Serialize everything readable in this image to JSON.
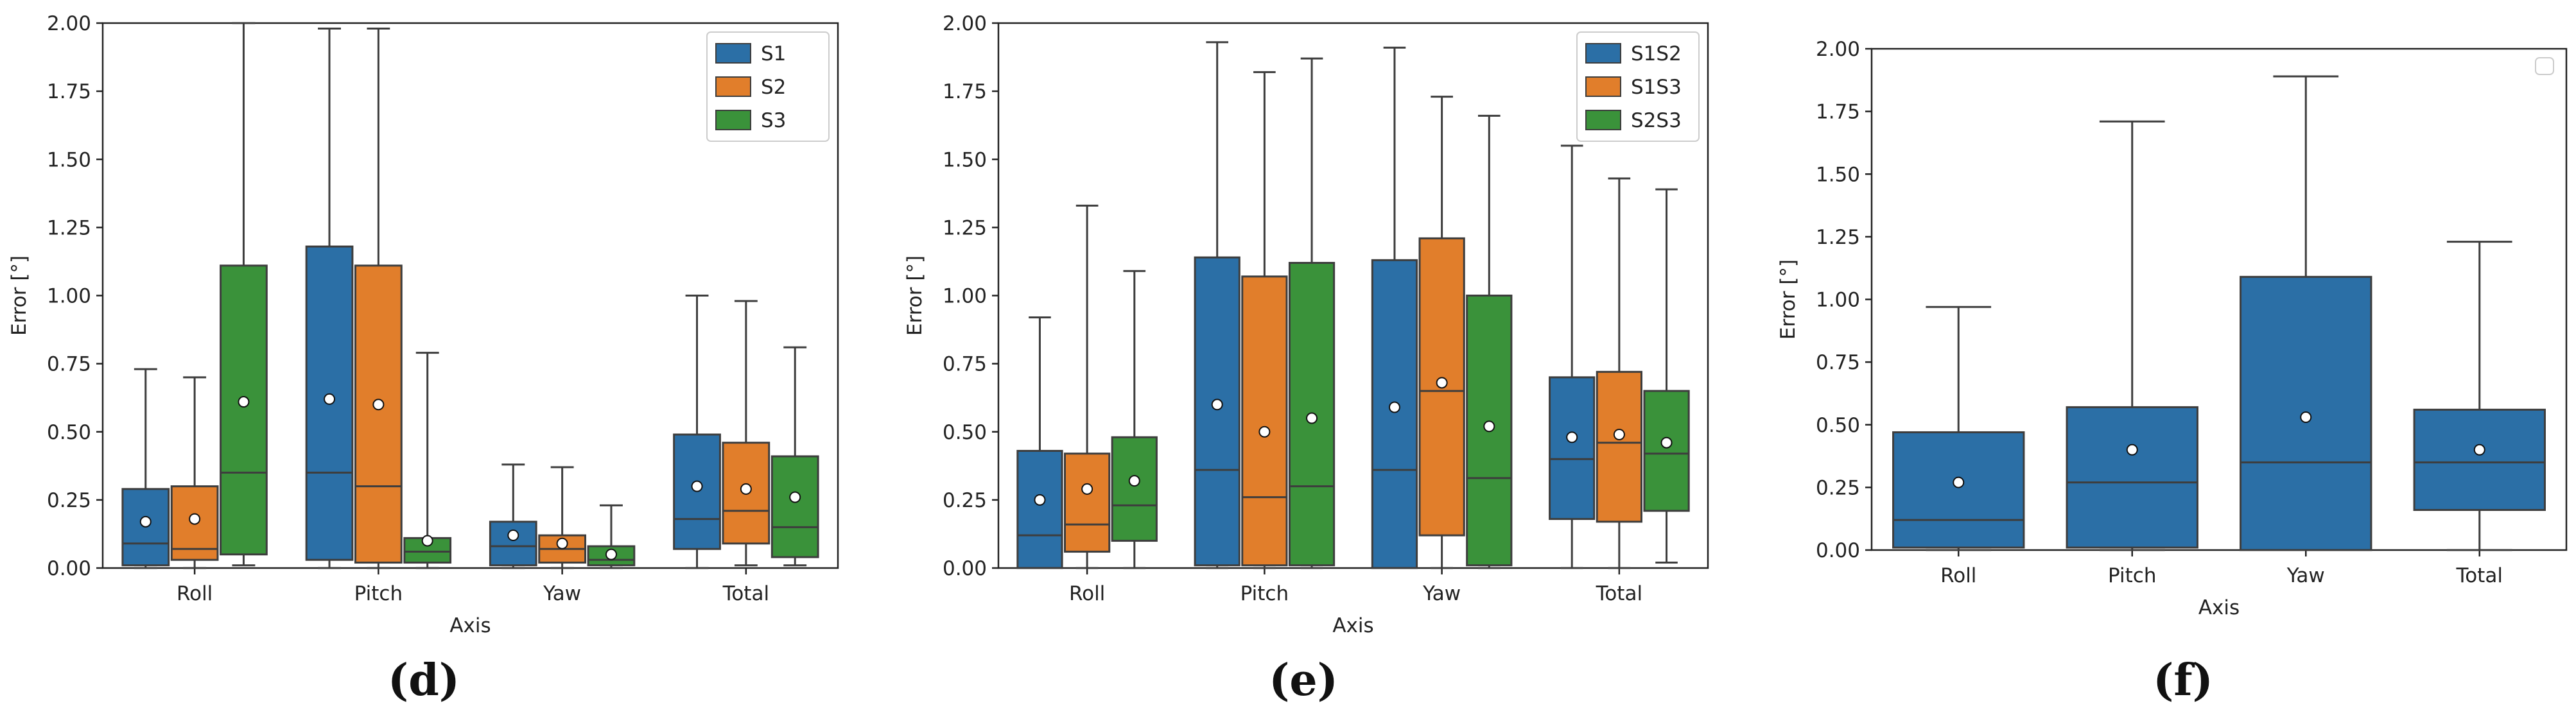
{
  "colors": {
    "box_stroke": "#3d3d3d",
    "mean_fill": "#ffffff",
    "axis": "#222222"
  },
  "chart_data": [
    {
      "type": "box",
      "caption": "(d)",
      "xlabel": "Axis",
      "ylabel": "Error [°]",
      "ylim": [
        0,
        2
      ],
      "yticks": [
        "0.00",
        "0.25",
        "0.50",
        "0.75",
        "1.00",
        "1.25",
        "1.50",
        "1.75",
        "2.00"
      ],
      "categories": [
        "Roll",
        "Pitch",
        "Yaw",
        "Total"
      ],
      "legend": {
        "location": "top-right",
        "entries": [
          "S1",
          "S2",
          "S3"
        ]
      },
      "series": [
        {
          "name": "S1",
          "color": "#2b6fa6",
          "boxes": [
            {
              "category": "Roll",
              "whislo": 0.0,
              "q1": 0.01,
              "med": 0.09,
              "q3": 0.29,
              "whishi": 0.73,
              "mean": 0.17
            },
            {
              "category": "Pitch",
              "whislo": 0.0,
              "q1": 0.03,
              "med": 0.35,
              "q3": 1.18,
              "whishi": 1.98,
              "mean": 0.62
            },
            {
              "category": "Yaw",
              "whislo": 0.0,
              "q1": 0.01,
              "med": 0.08,
              "q3": 0.17,
              "whishi": 0.38,
              "mean": 0.12
            },
            {
              "category": "Total",
              "whislo": 0.0,
              "q1": 0.07,
              "med": 0.18,
              "q3": 0.49,
              "whishi": 1.0,
              "mean": 0.3
            }
          ]
        },
        {
          "name": "S2",
          "color": "#e17e2b",
          "boxes": [
            {
              "category": "Roll",
              "whislo": 0.0,
              "q1": 0.03,
              "med": 0.07,
              "q3": 0.3,
              "whishi": 0.7,
              "mean": 0.18
            },
            {
              "category": "Pitch",
              "whislo": 0.0,
              "q1": 0.02,
              "med": 0.3,
              "q3": 1.11,
              "whishi": 1.98,
              "mean": 0.6
            },
            {
              "category": "Yaw",
              "whislo": 0.0,
              "q1": 0.02,
              "med": 0.07,
              "q3": 0.12,
              "whishi": 0.37,
              "mean": 0.09
            },
            {
              "category": "Total",
              "whislo": 0.01,
              "q1": 0.09,
              "med": 0.21,
              "q3": 0.46,
              "whishi": 0.98,
              "mean": 0.29
            }
          ]
        },
        {
          "name": "S3",
          "color": "#3a923a",
          "boxes": [
            {
              "category": "Roll",
              "whislo": 0.01,
              "q1": 0.05,
              "med": 0.35,
              "q3": 1.11,
              "whishi": 2.0,
              "mean": 0.61
            },
            {
              "category": "Pitch",
              "whislo": 0.0,
              "q1": 0.02,
              "med": 0.06,
              "q3": 0.11,
              "whishi": 0.79,
              "mean": 0.1
            },
            {
              "category": "Yaw",
              "whislo": 0.0,
              "q1": 0.01,
              "med": 0.03,
              "q3": 0.08,
              "whishi": 0.23,
              "mean": 0.05
            },
            {
              "category": "Total",
              "whislo": 0.01,
              "q1": 0.04,
              "med": 0.15,
              "q3": 0.41,
              "whishi": 0.81,
              "mean": 0.26
            }
          ]
        }
      ]
    },
    {
      "type": "box",
      "caption": "(e)",
      "xlabel": "Axis",
      "ylabel": "Error [°]",
      "ylim": [
        0,
        2
      ],
      "yticks": [
        "0.00",
        "0.25",
        "0.50",
        "0.75",
        "1.00",
        "1.25",
        "1.50",
        "1.75",
        "2.00"
      ],
      "categories": [
        "Roll",
        "Pitch",
        "Yaw",
        "Total"
      ],
      "legend": {
        "location": "top-right",
        "entries": [
          "S1S2",
          "S1S3",
          "S2S3"
        ]
      },
      "series": [
        {
          "name": "S1S2",
          "color": "#2b6fa6",
          "boxes": [
            {
              "category": "Roll",
              "whislo": 0.0,
              "q1": 0.0,
              "med": 0.12,
              "q3": 0.43,
              "whishi": 0.92,
              "mean": 0.25
            },
            {
              "category": "Pitch",
              "whislo": 0.0,
              "q1": 0.01,
              "med": 0.36,
              "q3": 1.14,
              "whishi": 1.93,
              "mean": 0.6
            },
            {
              "category": "Yaw",
              "whislo": 0.0,
              "q1": 0.0,
              "med": 0.36,
              "q3": 1.13,
              "whishi": 1.91,
              "mean": 0.59
            },
            {
              "category": "Total",
              "whislo": 0.0,
              "q1": 0.18,
              "med": 0.4,
              "q3": 0.7,
              "whishi": 1.55,
              "mean": 0.48
            }
          ]
        },
        {
          "name": "S1S3",
          "color": "#e17e2b",
          "boxes": [
            {
              "category": "Roll",
              "whislo": 0.0,
              "q1": 0.06,
              "med": 0.16,
              "q3": 0.42,
              "whishi": 1.33,
              "mean": 0.29
            },
            {
              "category": "Pitch",
              "whislo": 0.0,
              "q1": 0.01,
              "med": 0.26,
              "q3": 1.07,
              "whishi": 1.82,
              "mean": 0.5
            },
            {
              "category": "Yaw",
              "whislo": 0.0,
              "q1": 0.12,
              "med": 0.65,
              "q3": 1.21,
              "whishi": 1.73,
              "mean": 0.68
            },
            {
              "category": "Total",
              "whislo": 0.0,
              "q1": 0.17,
              "med": 0.46,
              "q3": 0.72,
              "whishi": 1.43,
              "mean": 0.49
            }
          ]
        },
        {
          "name": "S2S3",
          "color": "#3a923a",
          "boxes": [
            {
              "category": "Roll",
              "whislo": 0.0,
              "q1": 0.1,
              "med": 0.23,
              "q3": 0.48,
              "whishi": 1.09,
              "mean": 0.32
            },
            {
              "category": "Pitch",
              "whislo": 0.0,
              "q1": 0.01,
              "med": 0.3,
              "q3": 1.12,
              "whishi": 1.87,
              "mean": 0.55
            },
            {
              "category": "Yaw",
              "whislo": 0.0,
              "q1": 0.01,
              "med": 0.33,
              "q3": 1.0,
              "whishi": 1.66,
              "mean": 0.52
            },
            {
              "category": "Total",
              "whislo": 0.02,
              "q1": 0.21,
              "med": 0.42,
              "q3": 0.65,
              "whishi": 1.39,
              "mean": 0.46
            }
          ]
        }
      ]
    },
    {
      "type": "box",
      "caption": "(f)",
      "xlabel": "Axis",
      "ylabel": "Error [°]",
      "ylim": [
        0,
        2
      ],
      "yticks": [
        "0.00",
        "0.25",
        "0.50",
        "0.75",
        "1.00",
        "1.25",
        "1.50",
        "1.75",
        "2.00"
      ],
      "categories": [
        "Roll",
        "Pitch",
        "Yaw",
        "Total"
      ],
      "legend": {
        "location": "top-right",
        "entries": []
      },
      "series": [
        {
          "name": "",
          "color": "#2b6fa6",
          "boxes": [
            {
              "category": "Roll",
              "whislo": 0.0,
              "q1": 0.01,
              "med": 0.12,
              "q3": 0.47,
              "whishi": 0.97,
              "mean": 0.27
            },
            {
              "category": "Pitch",
              "whislo": 0.0,
              "q1": 0.01,
              "med": 0.27,
              "q3": 0.57,
              "whishi": 1.71,
              "mean": 0.4
            },
            {
              "category": "Yaw",
              "whislo": 0.0,
              "q1": 0.0,
              "med": 0.35,
              "q3": 1.09,
              "whishi": 1.89,
              "mean": 0.53
            },
            {
              "category": "Total",
              "whislo": 0.0,
              "q1": 0.16,
              "med": 0.35,
              "q3": 0.56,
              "whishi": 1.23,
              "mean": 0.4
            }
          ]
        }
      ]
    }
  ]
}
